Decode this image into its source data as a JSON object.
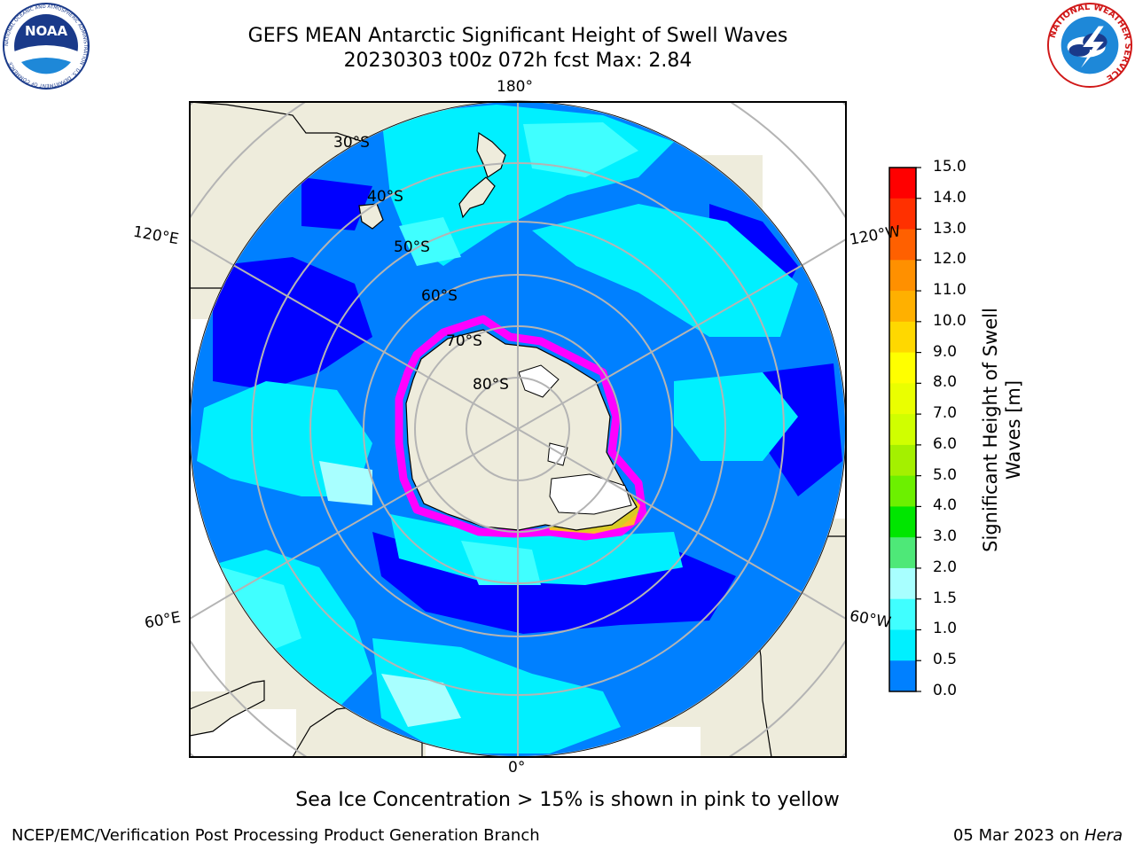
{
  "title_line1": "GEFS MEAN Antarctic Significant Height of Swell Waves",
  "title_line2": "20230303 t00z 072h fcst   Max: 2.84",
  "longitude_labels": {
    "top": "180°",
    "bottom": "0°",
    "upper_left": "120°E",
    "upper_right": "120°W",
    "lower_left": "60°E",
    "lower_right": "60°W"
  },
  "latitude_labels": [
    "30°S",
    "40°S",
    "50°S",
    "60°S",
    "70°S",
    "80°S"
  ],
  "colorbar": {
    "title": "Significant Height of Swell Waves [m]",
    "ticks": [
      "15.0",
      "14.0",
      "13.0",
      "12.0",
      "11.0",
      "10.0",
      "9.0",
      "8.0",
      "7.0",
      "6.0",
      "5.0",
      "4.0",
      "3.0",
      "2.0",
      "1.5",
      "1.0",
      "0.5",
      "0.0"
    ],
    "colors": [
      "#ff0000",
      "#ff3000",
      "#ff6000",
      "#ff9000",
      "#ffb000",
      "#ffd800",
      "#ffff00",
      "#eaff00",
      "#d0ff00",
      "#a4f000",
      "#6cf000",
      "#00e600",
      "#4ee878",
      "#a8ffff",
      "#40ffff",
      "#00f0ff",
      "#0080ff",
      "#0000ff"
    ]
  },
  "map_colors": {
    "land": "#eeecdc",
    "ocean_0_0_5": "#0000ff",
    "ocean_0_5_1": "#0080ff",
    "ocean_1_1_5": "#00f0ff",
    "ocean_1_5_2": "#40ffff",
    "ocean_2_3": "#a8ffff",
    "sea_ice_low": "#ff00ff",
    "sea_ice_high": "#ffd800",
    "grid": "#b4b4b4"
  },
  "note": "Sea Ice Concentration > 15% is shown in pink to yellow",
  "footer_left": "NCEP/EMC/Verification Post Processing Product Generation Branch",
  "footer_date": "05 Mar 2023 on ",
  "footer_host": "Hera",
  "logos": {
    "noaa": "NOAA",
    "noaa_ring": "NATIONAL OCEANIC AND ATMOSPHERIC ADMINISTRATION · U.S. DEPARTMENT OF COMMERCE",
    "nws_ring": "NATIONAL WEATHER SERVICE"
  }
}
